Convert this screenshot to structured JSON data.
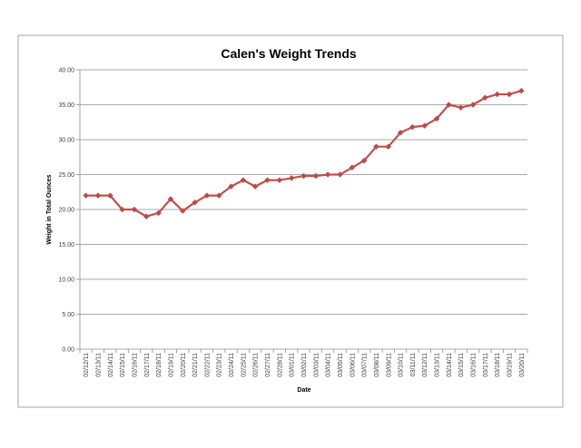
{
  "chart_data": {
    "type": "line",
    "title": "Calen's Weight Trends",
    "xlabel": "Date",
    "ylabel": "Weight in Total Ounces",
    "ylim": [
      0,
      40
    ],
    "yticks": [
      "0.00",
      "5.00",
      "10.00",
      "15.00",
      "20.00",
      "25.00",
      "30.00",
      "35.00",
      "40.00"
    ],
    "grid": true,
    "legend": "none",
    "categories": [
      "02/12/11",
      "02/13/11",
      "02/14/11",
      "02/15/11",
      "02/16/11",
      "02/17/11",
      "02/18/11",
      "02/19/11",
      "02/20/11",
      "02/21/11",
      "02/22/11",
      "02/23/11",
      "02/24/11",
      "02/25/11",
      "02/26/11",
      "02/27/11",
      "02/28/11",
      "03/01/11",
      "03/02/11",
      "03/03/11",
      "03/04/11",
      "03/05/11",
      "03/06/11",
      "03/07/11",
      "03/08/11",
      "03/09/11",
      "03/10/11",
      "03/11/11",
      "03/12/11",
      "03/13/11",
      "03/14/11",
      "03/15/11",
      "03/16/11",
      "03/17/11",
      "03/18/11",
      "03/19/11",
      "03/20/11"
    ],
    "series": [
      {
        "color": "#c0504d",
        "marker_color": "#be4b48",
        "values": [
          22.0,
          22.0,
          22.0,
          20.0,
          20.0,
          19.0,
          19.5,
          21.5,
          19.8,
          21.0,
          22.0,
          22.0,
          23.3,
          24.2,
          23.3,
          24.2,
          24.2,
          24.5,
          24.8,
          24.8,
          25.0,
          25.0,
          26.0,
          27.0,
          29.0,
          29.0,
          31.0,
          31.8,
          32.0,
          33.0,
          35.0,
          34.6,
          35.0,
          36.0,
          36.5,
          36.5,
          37.0
        ]
      }
    ]
  }
}
